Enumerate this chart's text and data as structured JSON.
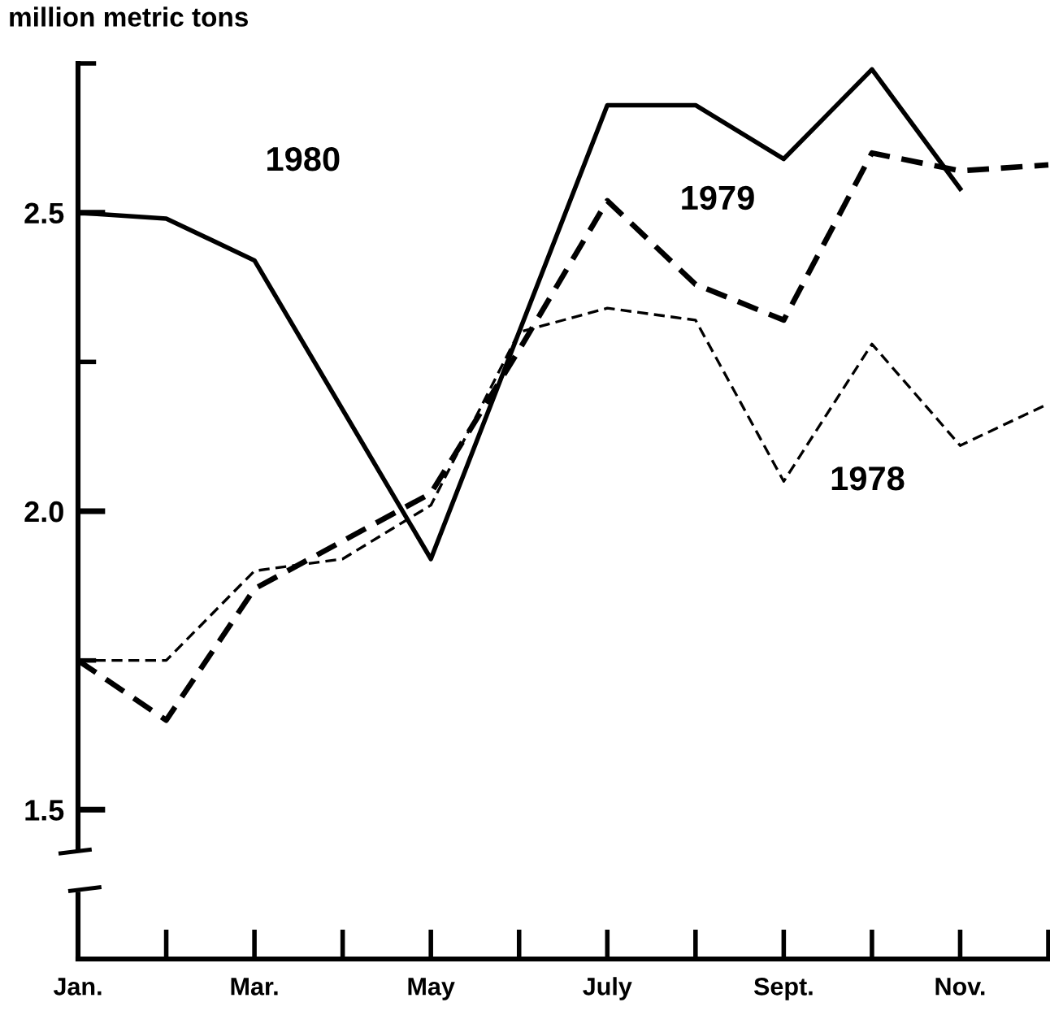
{
  "chart_data": {
    "type": "line",
    "ylabel": "million metric tons",
    "categories": [
      "Jan.",
      null,
      "Mar.",
      null,
      "May",
      null,
      "July",
      null,
      "Sept.",
      null,
      "Nov.",
      null
    ],
    "ylim": [
      1.25,
      2.75
    ],
    "yticks": [
      1.5,
      {
        "value": 1.75,
        "label": null
      },
      {
        "value": 2.0,
        "label": "2.0"
      },
      {
        "value": 2.25,
        "label": null
      },
      2.5,
      {
        "value": 2.75,
        "label": null
      }
    ],
    "grid": false,
    "legend": false,
    "marker": "none",
    "series": [
      {
        "name": "1980",
        "color": "#000000",
        "line_style": "solid",
        "values": [
          2.5,
          2.49,
          2.42,
          2.17,
          1.92,
          2.3,
          2.68,
          2.68,
          2.59,
          2.74,
          2.54,
          null
        ]
      },
      {
        "name": "1979",
        "color": "#000000",
        "line_style": "dashed",
        "values": [
          1.75,
          1.65,
          1.87,
          1.95,
          2.03,
          2.27,
          2.52,
          2.38,
          2.32,
          2.6,
          2.57,
          2.58
        ]
      },
      {
        "name": "1978",
        "color": "#000000",
        "line_style": "dashed",
        "values": [
          1.75,
          1.75,
          1.9,
          1.92,
          2.01,
          2.3,
          2.34,
          2.32,
          2.05,
          2.28,
          2.11,
          2.18
        ]
      }
    ]
  }
}
